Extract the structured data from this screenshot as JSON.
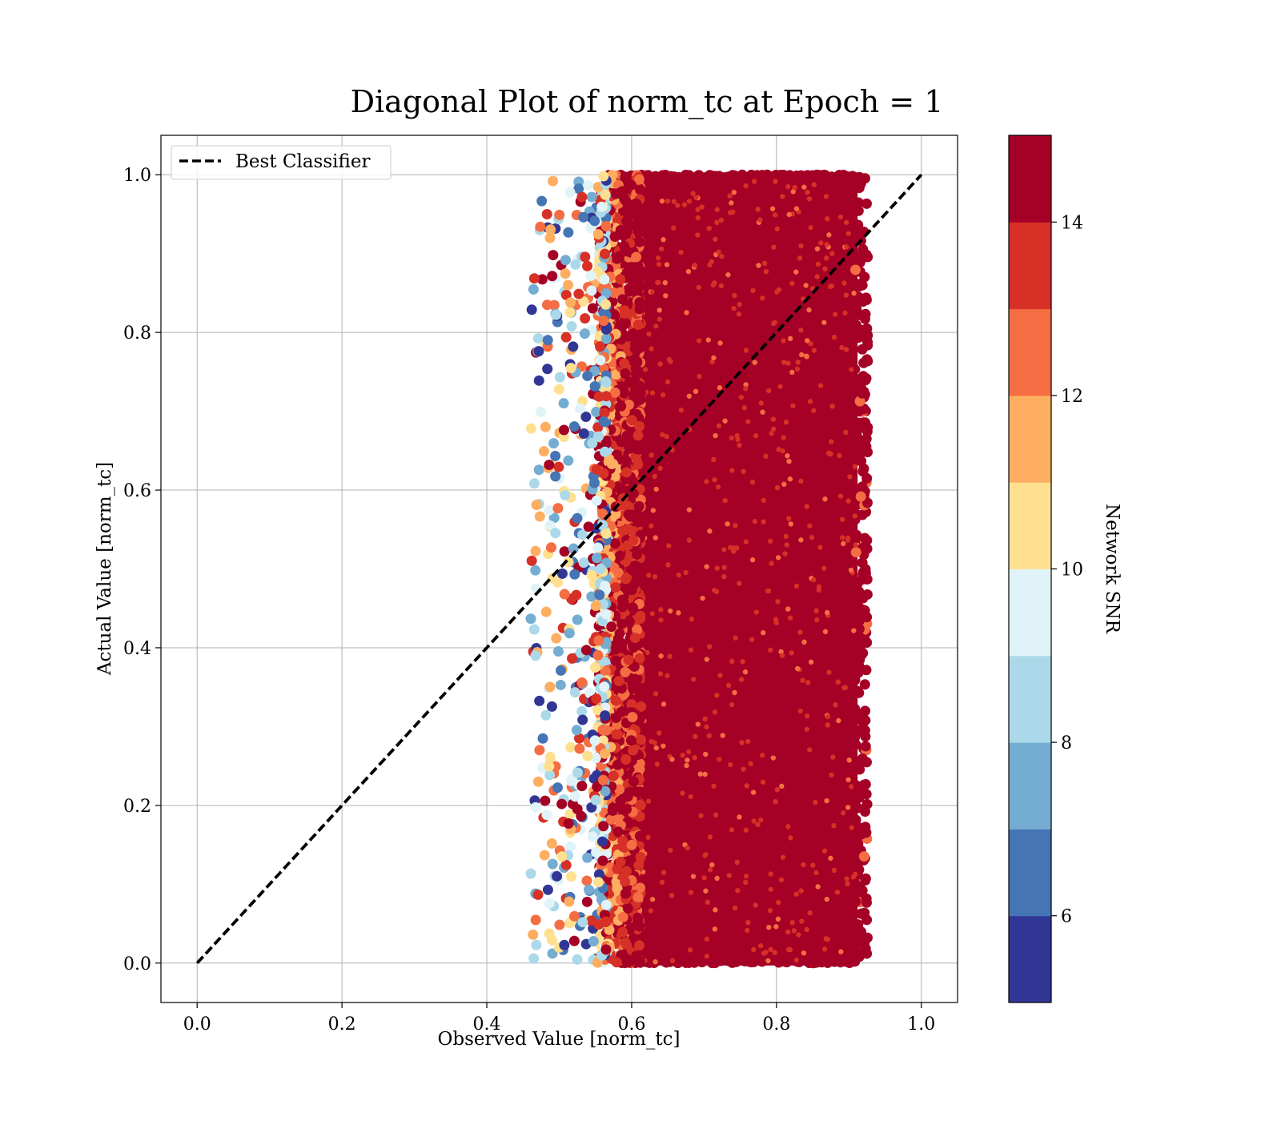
{
  "chart_data": {
    "type": "scatter",
    "title": "Diagonal Plot of norm_tc at Epoch = 1",
    "xlabel": "Observed Value [norm_tc]",
    "ylabel": "Actual Value [norm_tc]",
    "xlim": [
      -0.05,
      1.05
    ],
    "ylim": [
      -0.05,
      1.05
    ],
    "xticks": [
      "0.0",
      "0.2",
      "0.4",
      "0.6",
      "0.8",
      "1.0"
    ],
    "yticks": [
      "0.0",
      "0.2",
      "0.4",
      "0.6",
      "0.8",
      "1.0"
    ],
    "grid": true,
    "legend": {
      "placement": "top-left",
      "entries": [
        "Best Classifier"
      ]
    },
    "reference_line": {
      "name": "Best Classifier",
      "x": [
        0,
        1
      ],
      "y": [
        0,
        1
      ],
      "style": "dashed",
      "color": "#000000"
    },
    "scatter_region": {
      "dense_x_range": [
        0.57,
        0.92
      ],
      "sparse_x_range": [
        0.46,
        0.57
      ],
      "y_range": [
        0.0,
        1.0
      ],
      "dominant_color": "#a50026"
    },
    "colorbar": {
      "label": "Network SNR",
      "range": [
        5,
        15
      ],
      "ticks": [
        "6",
        "8",
        "10",
        "12",
        "14"
      ],
      "tick_values": [
        6,
        8,
        10,
        12,
        14
      ],
      "colors": [
        "#313695",
        "#4575b4",
        "#74add1",
        "#abd9e9",
        "#e0f3f8",
        "#fee090",
        "#fdae61",
        "#f46d43",
        "#d73027",
        "#a50026"
      ]
    }
  }
}
